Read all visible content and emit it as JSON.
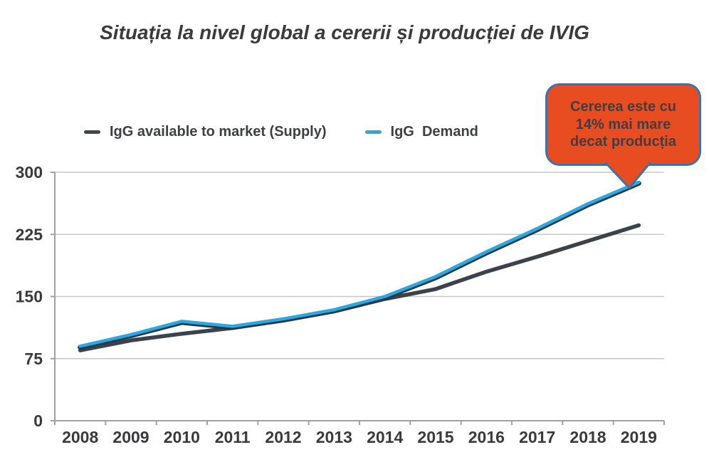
{
  "title": "Situația la nivel global a cererii și producției de IVIG",
  "legend": {
    "items": [
      {
        "label": "IgG available to market (Supply)",
        "color": "#3F4852"
      },
      {
        "label": "IgG  Demand",
        "color": "#29A9E0"
      }
    ]
  },
  "callout": {
    "lines": [
      "Cererea este cu",
      "14% mai mare",
      "decat producția"
    ],
    "fill": "#E84D22",
    "border_color": "#3F72A8",
    "text_color": "#453C42"
  },
  "chart_data": {
    "type": "line",
    "title": "Situația la nivel global a cererii și producției de IVIG",
    "categories": [
      "2008",
      "2009",
      "2010",
      "2011",
      "2012",
      "2013",
      "2014",
      "2015",
      "2016",
      "2017",
      "2018",
      "2019"
    ],
    "series": [
      {
        "name": "IgG available to market (Supply)",
        "color": "#3A424C",
        "values": [
          85,
          97,
          105,
          112,
          121,
          132,
          147,
          159,
          180,
          198,
          217,
          236
        ]
      },
      {
        "name": "IgG Demand",
        "color": "#29A9E0",
        "shadow_color": "#21374B",
        "values": [
          90,
          104,
          120,
          114,
          123,
          134,
          150,
          174,
          204,
          232,
          262,
          288
        ]
      }
    ],
    "xlabel": "",
    "ylabel": "",
    "ylim": [
      0,
      300
    ],
    "yticks": [
      0,
      75,
      150,
      225,
      300
    ],
    "grid": "horizontal",
    "legend_position": "top",
    "annotation": "Cererea este cu 14% mai mare decat producția"
  },
  "colors": {
    "grid": "#C5C7C9",
    "axis": "#9EA2A6",
    "tick_label": "#3A3A3C",
    "title": "#3B3B3B"
  }
}
